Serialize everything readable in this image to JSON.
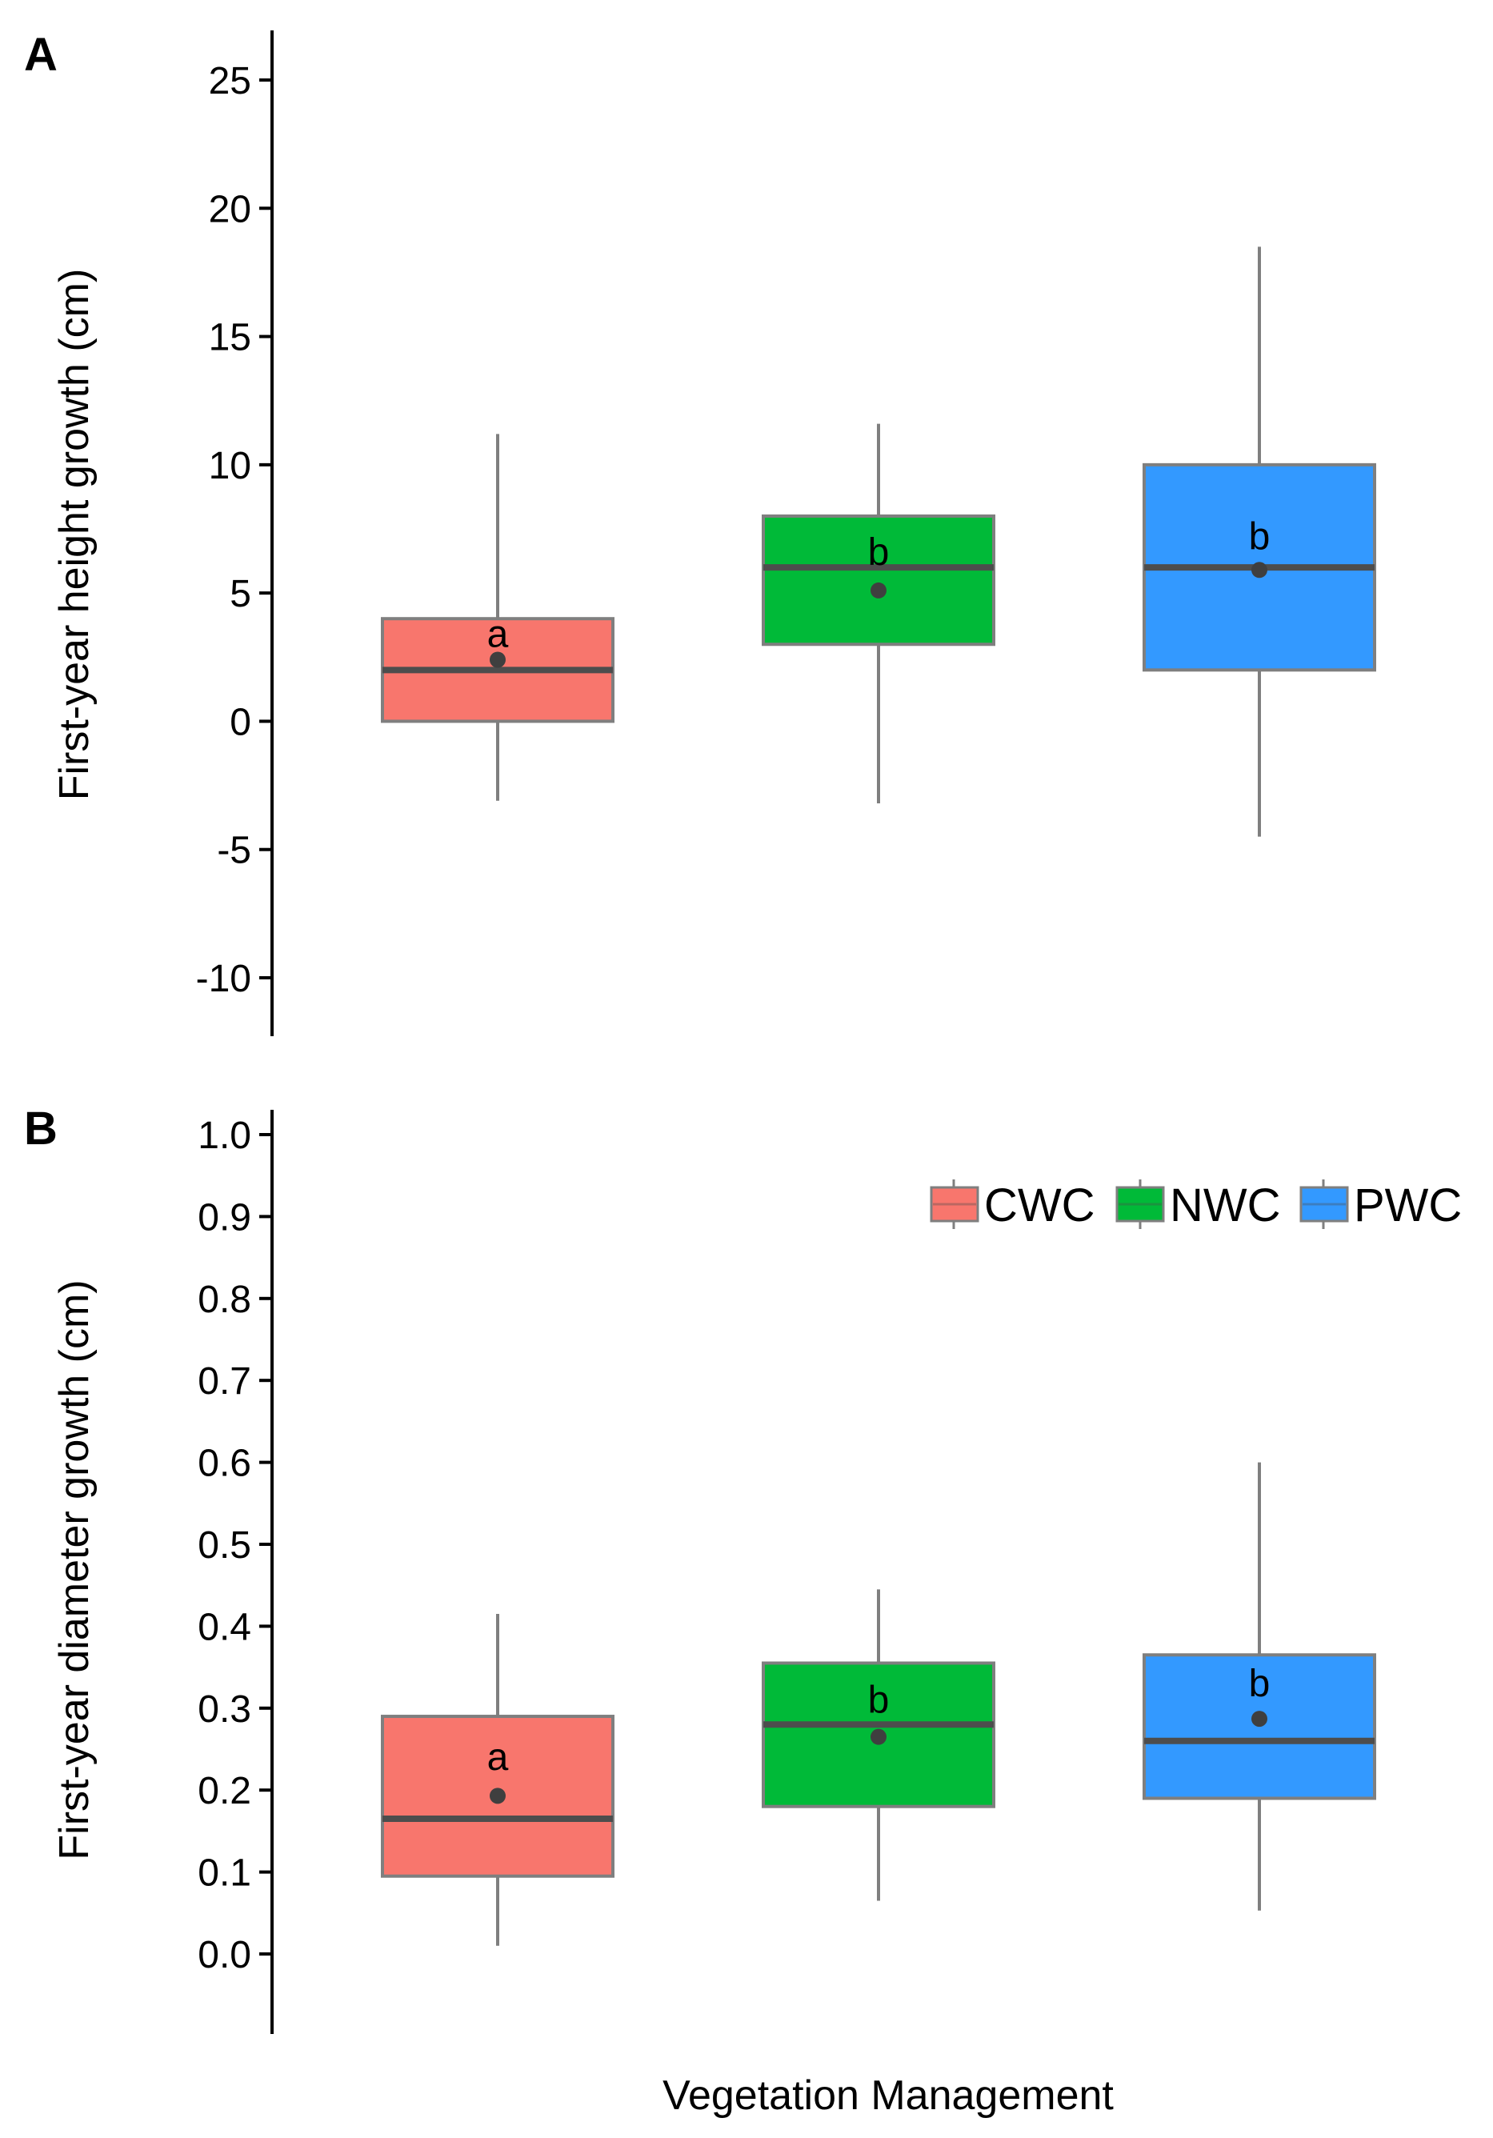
{
  "figure": {
    "xlabel": "Vegetation Management"
  },
  "chart_data": [
    {
      "panel": "A",
      "type": "box",
      "ylabel": "First-year height growth (cm)",
      "ylim": [
        -12,
        27
      ],
      "yticks": [
        -10,
        -5,
        0,
        5,
        10,
        15,
        20,
        25
      ],
      "ytick_labels": [
        "-10",
        "-5",
        "0",
        "5",
        "10",
        "15",
        "20",
        "25"
      ],
      "categories": [
        "CWC",
        "NWC",
        "PWC"
      ],
      "boxes": [
        {
          "group": "CWC",
          "whisker_low": -3.1,
          "q1": 0,
          "median": 2,
          "q3": 4,
          "whisker_high": 11.2,
          "mean": 2.4,
          "label": "a",
          "label_value": 3.4
        },
        {
          "group": "NWC",
          "whisker_low": -3.2,
          "q1": 3,
          "median": 6,
          "q3": 8,
          "whisker_high": 11.6,
          "mean": 5.1,
          "label": "b",
          "label_value": 6.6
        },
        {
          "group": "PWC",
          "whisker_low": -4.5,
          "q1": 2,
          "median": 6,
          "q3": 10,
          "whisker_high": 18.5,
          "mean": 5.9,
          "label": "b",
          "label_value": 7.2
        }
      ]
    },
    {
      "panel": "B",
      "type": "box",
      "ylabel": "First-year diameter growth (cm)",
      "ylim": [
        -0.05,
        1.05
      ],
      "yticks": [
        0.0,
        0.1,
        0.2,
        0.3,
        0.4,
        0.5,
        0.6,
        0.7,
        0.8,
        0.9,
        1.0
      ],
      "ytick_labels": [
        "0.0",
        "0.1",
        "0.2",
        "0.3",
        "0.4",
        "0.5",
        "0.6",
        "0.7",
        "0.8",
        "0.9",
        "1.0"
      ],
      "categories": [
        "CWC",
        "NWC",
        "PWC"
      ],
      "boxes": [
        {
          "group": "CWC",
          "whisker_low": 0.01,
          "q1": 0.095,
          "median": 0.165,
          "q3": 0.29,
          "whisker_high": 0.415,
          "mean": 0.193,
          "label": "a",
          "label_value": 0.24
        },
        {
          "group": "NWC",
          "whisker_low": 0.065,
          "q1": 0.18,
          "median": 0.28,
          "q3": 0.355,
          "whisker_high": 0.445,
          "mean": 0.265,
          "label": "b",
          "label_value": 0.31
        },
        {
          "group": "PWC",
          "whisker_low": 0.053,
          "q1": 0.19,
          "median": 0.26,
          "q3": 0.365,
          "whisker_high": 0.6,
          "mean": 0.287,
          "label": "b",
          "label_value": 0.33
        }
      ]
    }
  ],
  "legend": {
    "placement": "top-right of panel B",
    "items": [
      {
        "label": "CWC",
        "color": "#F8766D"
      },
      {
        "label": "NWC",
        "color": "#00BA38"
      },
      {
        "label": "PWC",
        "color": "#3399FF"
      }
    ]
  },
  "colors": {
    "CWC": "#F8766D",
    "NWC": "#00BA38",
    "PWC": "#3399FF",
    "box_border": "#7F7F7F",
    "median_line": "#4D4D4D",
    "mean_point": "#3F3F3F",
    "whisker": "#7F7F7F"
  }
}
